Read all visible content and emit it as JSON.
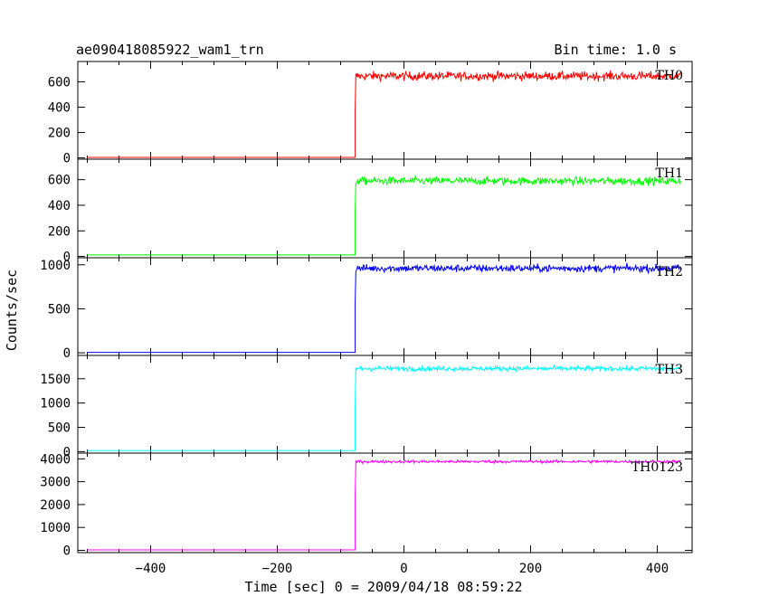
{
  "chart_data": {
    "type": "line",
    "title": "ae090418085922_wam1_trn",
    "subtitle": "Bin time: 1.0 s",
    "xlabel": "Time [sec] 0 = 2009/04/18 08:59:22",
    "ylabel": "Counts/sec",
    "xlim": [
      -515,
      455
    ],
    "x_ticks": [
      -400,
      -200,
      0,
      200,
      400
    ],
    "x_tick_labels": [
      "−400",
      "−200",
      "0",
      "200",
      "400"
    ],
    "step_time": -77,
    "data_start": -500,
    "data_end": 437,
    "grid": false,
    "panels": [
      {
        "name": "TH0",
        "color": "#ff0000",
        "ylim": [
          -10,
          760
        ],
        "yticks": [
          0,
          200,
          400,
          600
        ],
        "yticks_labels": [
          "0",
          "200",
          "400",
          "600"
        ],
        "baseline": 4,
        "plateau": 645,
        "noise": 45
      },
      {
        "name": "TH1",
        "color": "#00ff00",
        "ylim": [
          -10,
          760
        ],
        "yticks": [
          0,
          200,
          400,
          600
        ],
        "yticks_labels": [
          "0",
          "200",
          "400",
          "600"
        ],
        "baseline": 12,
        "plateau": 590,
        "noise": 40
      },
      {
        "name": "TH2",
        "color": "#0000ff",
        "ylim": [
          -30,
          1080
        ],
        "yticks": [
          0,
          500,
          1000
        ],
        "yticks_labels": [
          "0",
          "500",
          "1000"
        ],
        "baseline": 5,
        "plateau": 960,
        "noise": 55
      },
      {
        "name": "TH3",
        "color": "#00ffff",
        "ylim": [
          -30,
          1980
        ],
        "yticks": [
          0,
          500,
          1000,
          1500
        ],
        "yticks_labels": [
          "0",
          "500",
          "1000",
          "1500"
        ],
        "baseline": 22,
        "plateau": 1710,
        "noise": 65
      },
      {
        "name": "TH0123",
        "color": "#ff00ff",
        "ylim": [
          -100,
          4250
        ],
        "yticks": [
          0,
          1000,
          2000,
          3000,
          4000
        ],
        "yticks_labels": [
          "0",
          "1000",
          "2000",
          "3000",
          "4000"
        ],
        "baseline": 20,
        "plateau": 3880,
        "noise": 80
      }
    ]
  }
}
